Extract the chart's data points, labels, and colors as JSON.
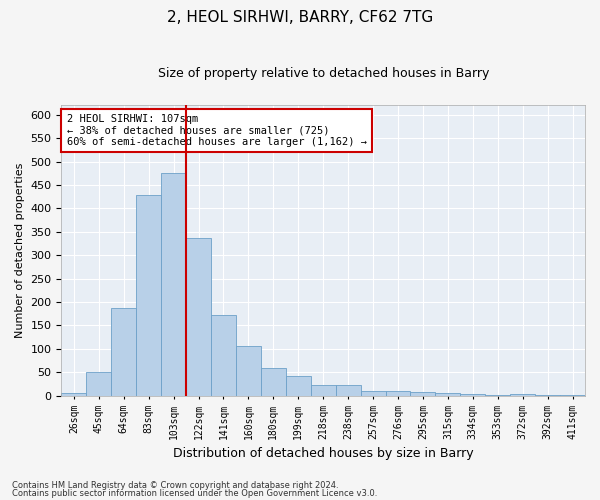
{
  "title": "2, HEOL SIRHWI, BARRY, CF62 7TG",
  "subtitle": "Size of property relative to detached houses in Barry",
  "xlabel": "Distribution of detached houses by size in Barry",
  "ylabel": "Number of detached properties",
  "bins": [
    "26sqm",
    "45sqm",
    "64sqm",
    "83sqm",
    "103sqm",
    "122sqm",
    "141sqm",
    "160sqm",
    "180sqm",
    "199sqm",
    "218sqm",
    "238sqm",
    "257sqm",
    "276sqm",
    "295sqm",
    "315sqm",
    "334sqm",
    "353sqm",
    "372sqm",
    "392sqm",
    "411sqm"
  ],
  "values": [
    5,
    50,
    187,
    428,
    476,
    336,
    172,
    107,
    60,
    43,
    22,
    22,
    11,
    11,
    9,
    5,
    3,
    2,
    3,
    2,
    1
  ],
  "bar_color": "#b8d0e8",
  "bar_edge_color": "#6ca0c8",
  "vline_index": 4,
  "vline_color": "#cc0000",
  "annotation_line1": "2 HEOL SIRHWI: 107sqm",
  "annotation_line2": "← 38% of detached houses are smaller (725)",
  "annotation_line3": "60% of semi-detached houses are larger (1,162) →",
  "annotation_box_facecolor": "#ffffff",
  "annotation_box_edgecolor": "#cc0000",
  "ylim_max": 620,
  "background_color": "#e8eef5",
  "grid_color": "#ffffff",
  "fig_facecolor": "#f5f5f5",
  "footer1": "Contains HM Land Registry data © Crown copyright and database right 2024.",
  "footer2": "Contains public sector information licensed under the Open Government Licence v3.0."
}
